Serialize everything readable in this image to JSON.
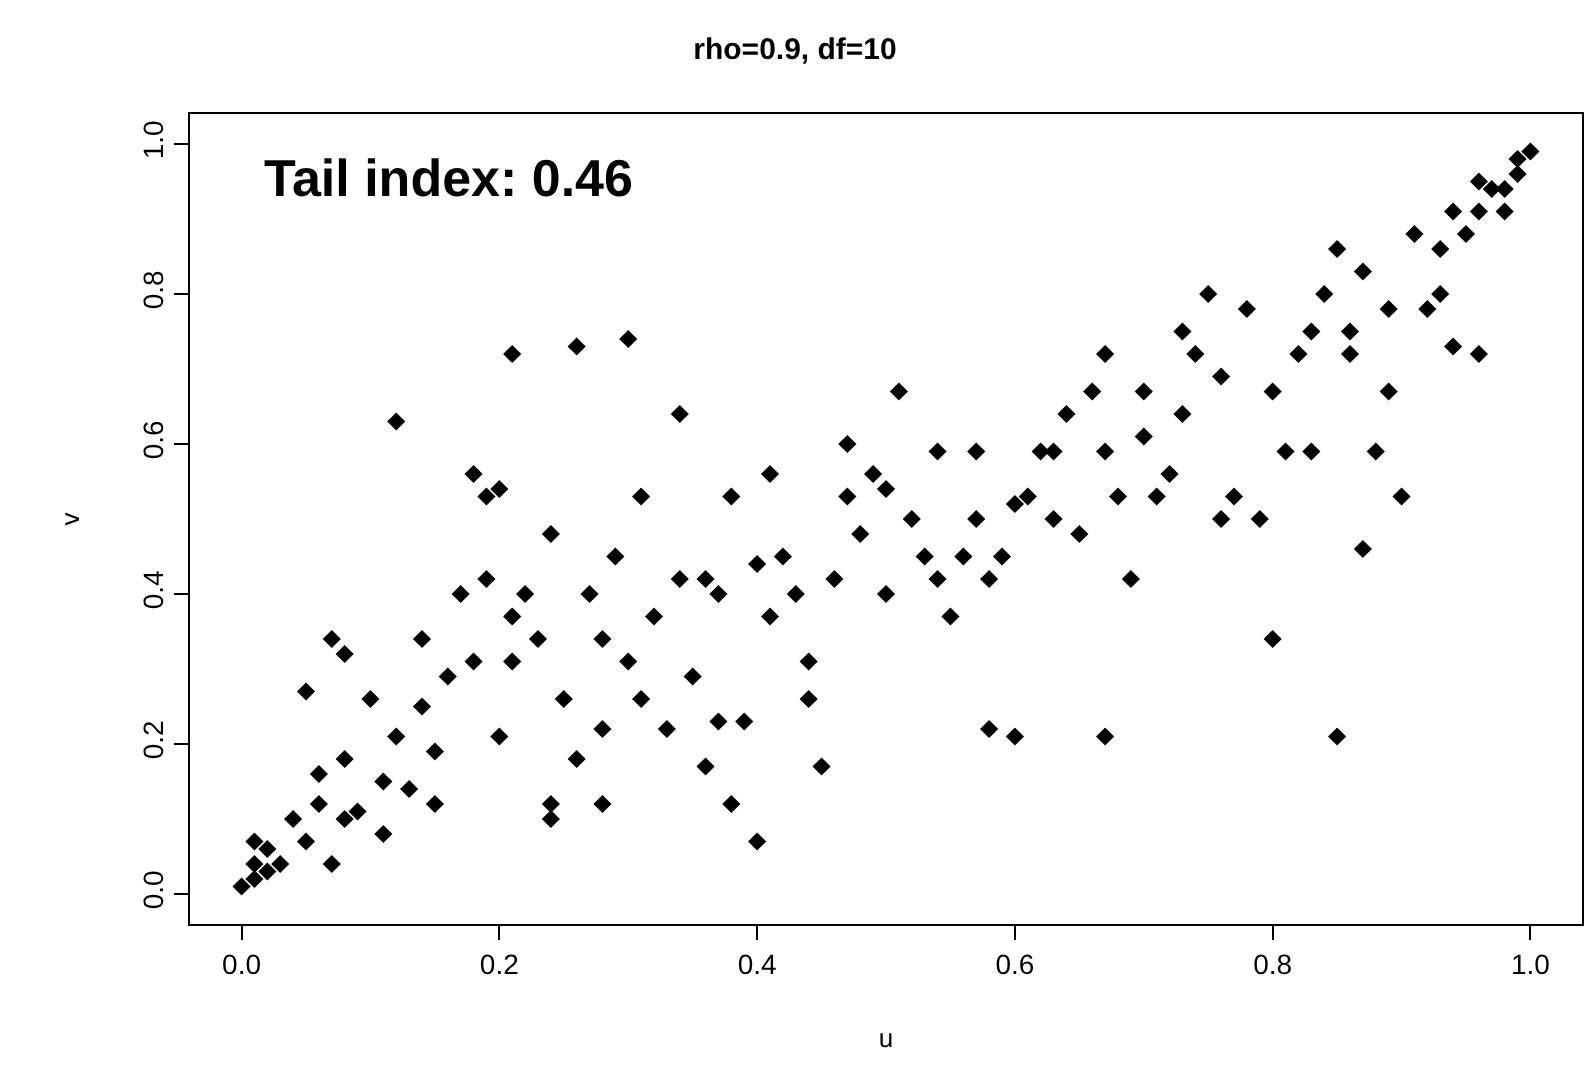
{
  "chart_data": {
    "type": "scatter",
    "title": "rho=0.9, df=10",
    "xlabel": "u",
    "ylabel": "v",
    "annotations": [
      "Tail index: 0.46"
    ],
    "xlim": [
      -0.04,
      1.04
    ],
    "ylim": [
      -0.04,
      1.04
    ],
    "xticks": [
      {
        "value": 0,
        "label": "0.0"
      },
      {
        "value": 0.2,
        "label": "0.2"
      },
      {
        "value": 0.4,
        "label": "0.4"
      },
      {
        "value": 0.6,
        "label": "0.6"
      },
      {
        "value": 0.8,
        "label": "0.8"
      },
      {
        "value": 1,
        "label": "1.0"
      }
    ],
    "yticks": [
      {
        "value": 0,
        "label": "0.0"
      },
      {
        "value": 0.2,
        "label": "0.2"
      },
      {
        "value": 0.4,
        "label": "0.4"
      },
      {
        "value": 0.6,
        "label": "0.6"
      },
      {
        "value": 0.8,
        "label": "0.8"
      },
      {
        "value": 1,
        "label": "1.0"
      }
    ],
    "grid": false,
    "marker": "diamond",
    "series": [
      {
        "color": "#000000",
        "x": [
          0.0,
          0.01,
          0.01,
          0.02,
          0.02,
          0.01,
          0.03,
          0.04,
          0.05,
          0.05,
          0.06,
          0.07,
          0.08,
          0.08,
          0.09,
          0.1,
          0.11,
          0.11,
          0.12,
          0.13,
          0.14,
          0.14,
          0.12,
          0.15,
          0.15,
          0.16,
          0.17,
          0.18,
          0.18,
          0.19,
          0.19,
          0.2,
          0.21,
          0.21,
          0.22,
          0.23,
          0.24,
          0.24,
          0.24,
          0.25,
          0.26,
          0.27,
          0.28,
          0.28,
          0.29,
          0.3,
          0.31,
          0.31,
          0.32,
          0.33,
          0.34,
          0.34,
          0.35,
          0.36,
          0.37,
          0.37,
          0.38,
          0.39,
          0.4,
          0.41,
          0.41,
          0.42,
          0.43,
          0.44,
          0.44,
          0.45,
          0.46,
          0.4,
          0.47,
          0.47,
          0.48,
          0.49,
          0.5,
          0.5,
          0.51,
          0.52,
          0.53,
          0.54,
          0.54,
          0.55,
          0.56,
          0.57,
          0.57,
          0.58,
          0.59,
          0.6,
          0.6,
          0.61,
          0.62,
          0.63,
          0.63,
          0.64,
          0.65,
          0.66,
          0.67,
          0.67,
          0.68,
          0.69,
          0.7,
          0.7,
          0.71,
          0.72,
          0.73,
          0.73,
          0.74,
          0.75,
          0.76,
          0.76,
          0.77,
          0.78,
          0.79,
          0.8,
          0.8,
          0.81,
          0.82,
          0.83,
          0.83,
          0.84,
          0.85,
          0.86,
          0.86,
          0.87,
          0.88,
          0.89,
          0.89,
          0.9,
          0.91,
          0.92,
          0.93,
          0.93,
          0.94,
          0.95,
          0.96,
          0.96,
          0.97,
          0.98,
          0.99,
          0.99,
          1.0,
          0.87,
          0.58,
          0.67,
          0.2,
          0.3,
          0.26,
          0.21,
          0.07,
          0.06,
          0.08,
          0.98,
          0.96,
          0.94,
          0.36,
          0.38,
          0.28,
          0.85
        ],
        "values": [
          0.01,
          0.02,
          0.04,
          0.03,
          0.06,
          0.07,
          0.04,
          0.1,
          0.27,
          0.07,
          0.12,
          0.04,
          0.1,
          0.18,
          0.11,
          0.26,
          0.15,
          0.08,
          0.21,
          0.14,
          0.25,
          0.34,
          0.63,
          0.12,
          0.19,
          0.29,
          0.4,
          0.31,
          0.56,
          0.53,
          0.42,
          0.21,
          0.31,
          0.37,
          0.4,
          0.34,
          0.12,
          0.1,
          0.48,
          0.26,
          0.18,
          0.4,
          0.12,
          0.34,
          0.45,
          0.31,
          0.53,
          0.26,
          0.37,
          0.22,
          0.64,
          0.42,
          0.29,
          0.42,
          0.23,
          0.4,
          0.53,
          0.23,
          0.44,
          0.37,
          0.56,
          0.45,
          0.4,
          0.31,
          0.26,
          0.17,
          0.42,
          0.07,
          0.6,
          0.53,
          0.48,
          0.56,
          0.4,
          0.54,
          0.67,
          0.5,
          0.45,
          0.59,
          0.42,
          0.37,
          0.45,
          0.59,
          0.5,
          0.42,
          0.45,
          0.21,
          0.52,
          0.53,
          0.59,
          0.59,
          0.5,
          0.64,
          0.48,
          0.67,
          0.59,
          0.72,
          0.53,
          0.42,
          0.67,
          0.61,
          0.53,
          0.56,
          0.75,
          0.64,
          0.72,
          0.8,
          0.5,
          0.69,
          0.53,
          0.78,
          0.5,
          0.34,
          0.67,
          0.59,
          0.72,
          0.75,
          0.59,
          0.8,
          0.86,
          0.75,
          0.72,
          0.83,
          0.59,
          0.78,
          0.67,
          0.53,
          0.88,
          0.78,
          0.8,
          0.86,
          0.73,
          0.88,
          0.72,
          0.91,
          0.94,
          0.91,
          0.96,
          0.98,
          0.99,
          0.46,
          0.22,
          0.21,
          0.54,
          0.74,
          0.73,
          0.72,
          0.34,
          0.16,
          0.32,
          0.94,
          0.95,
          0.91,
          0.17,
          0.12,
          0.22,
          0.21
        ]
      }
    ]
  }
}
